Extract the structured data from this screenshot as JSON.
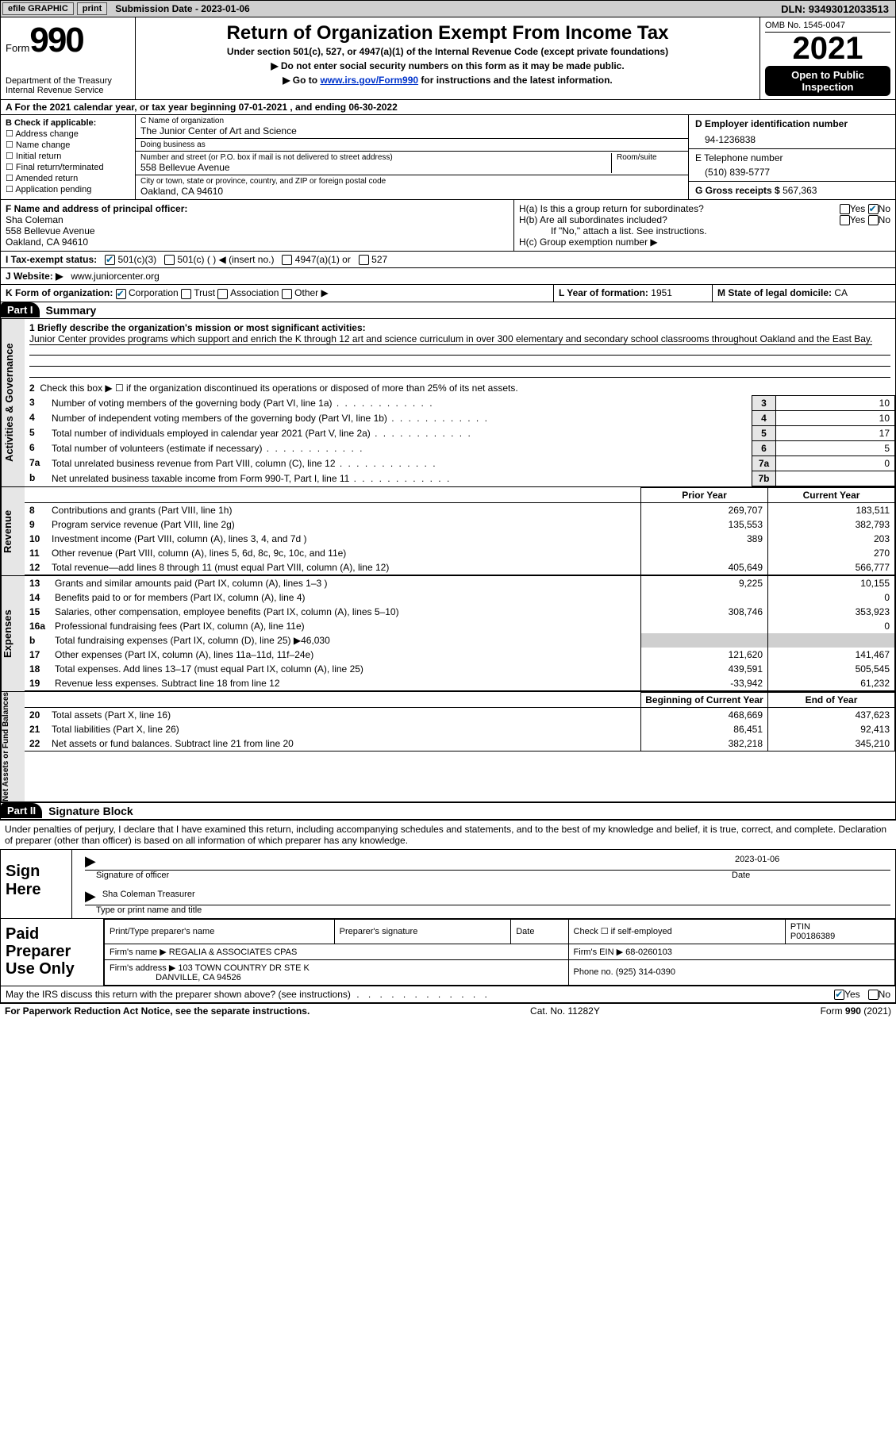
{
  "topbar": {
    "efile": "efile GRAPHIC",
    "print": "print",
    "subdate_label": "Submission Date -",
    "subdate": "2023-01-06",
    "dln_label": "DLN:",
    "dln": "93493012033513"
  },
  "header": {
    "form_word": "Form",
    "form_no": "990",
    "dept": "Department of the Treasury\nInternal Revenue Service",
    "title": "Return of Organization Exempt From Income Tax",
    "sub1": "Under section 501(c), 527, or 4947(a)(1) of the Internal Revenue Code (except private foundations)",
    "sub2": "▶ Do not enter social security numbers on this form as it may be made public.",
    "sub3_pre": "▶ Go to ",
    "sub3_link": "www.irs.gov/Form990",
    "sub3_post": " for instructions and the latest information.",
    "omb": "OMB No. 1545-0047",
    "year": "2021",
    "inspect": "Open to Public Inspection"
  },
  "period": {
    "line": "A For the 2021 calendar year, or tax year beginning 07-01-2021   , and ending 06-30-2022"
  },
  "entity": {
    "b_label": "B Check if applicable:",
    "b_opts": [
      "Address change",
      "Name change",
      "Initial return",
      "Final return/terminated",
      "Amended return",
      "Application pending"
    ],
    "c_name_lbl": "C Name of organization",
    "c_name": "The Junior Center of Art and Science",
    "dba_lbl": "Doing business as",
    "dba": "",
    "street_lbl": "Number and street (or P.O. box if mail is not delivered to street address)",
    "street": "558 Bellevue Avenue",
    "room_lbl": "Room/suite",
    "city_lbl": "City or town, state or province, country, and ZIP or foreign postal code",
    "city": "Oakland, CA  94610",
    "d_lbl": "D Employer identification number",
    "d_ein": "94-1236838",
    "e_lbl": "E Telephone number",
    "e_phone": "(510) 839-5777",
    "g_lbl": "G Gross receipts $",
    "g_val": "567,363"
  },
  "officer": {
    "f_lbl": "F  Name and address of principal officer:",
    "f_name": "Sha Coleman",
    "f_addr1": "558 Bellevue Avenue",
    "f_addr2": "Oakland, CA  94610",
    "ha_lbl": "H(a)  Is this a group return for subordinates?",
    "hb_lbl": "H(b)  Are all subordinates included?",
    "h_note": "If \"No,\" attach a list. See instructions.",
    "hc_lbl": "H(c)  Group exemption number ▶",
    "yes": "Yes",
    "no": "No"
  },
  "status": {
    "i_lbl": "I  Tax-exempt status:",
    "s501c3": "501(c)(3)",
    "s501c": "501(c) (  ) ◀ (insert no.)",
    "s4947": "4947(a)(1) or",
    "s527": "527"
  },
  "website": {
    "j_lbl": "J Website: ▶",
    "url": "www.juniorcenter.org"
  },
  "formorg": {
    "k_lbl": "K Form of organization:",
    "opts": [
      "Corporation",
      "Trust",
      "Association",
      "Other ▶"
    ],
    "l_lbl": "L Year of formation:",
    "l_val": "1951",
    "m_lbl": "M State of legal domicile:",
    "m_val": "CA"
  },
  "part1": {
    "label": "Part I",
    "title": "Summary"
  },
  "summary": {
    "vlabel": "Activities & Governance",
    "l1_lbl": "1  Briefly describe the organization's mission or most significant activities:",
    "l1_text": "Junior Center provides programs which support and enrich the K through 12 art and science curriculum in over 300 elementary and secondary school classrooms throughout Oakland and the East Bay.",
    "l2": "Check this box ▶ ☐  if the organization discontinued its operations or disposed of more than 25% of its net assets.",
    "rows": [
      {
        "n": "3",
        "desc": "Number of voting members of the governing body (Part VI, line 1a)",
        "box": "3",
        "val": "10"
      },
      {
        "n": "4",
        "desc": "Number of independent voting members of the governing body (Part VI, line 1b)",
        "box": "4",
        "val": "10"
      },
      {
        "n": "5",
        "desc": "Total number of individuals employed in calendar year 2021 (Part V, line 2a)",
        "box": "5",
        "val": "17"
      },
      {
        "n": "6",
        "desc": "Total number of volunteers (estimate if necessary)",
        "box": "6",
        "val": "5"
      },
      {
        "n": "7a",
        "desc": "Total unrelated business revenue from Part VIII, column (C), line 12",
        "box": "7a",
        "val": "0"
      },
      {
        "n": "b",
        "desc": "Net unrelated business taxable income from Form 990-T, Part I, line 11",
        "box": "7b",
        "val": ""
      }
    ]
  },
  "revenue": {
    "vlabel": "Revenue",
    "py_hdr": "Prior Year",
    "cy_hdr": "Current Year",
    "rows": [
      {
        "n": "8",
        "desc": "Contributions and grants (Part VIII, line 1h)",
        "py": "269,707",
        "cy": "183,511"
      },
      {
        "n": "9",
        "desc": "Program service revenue (Part VIII, line 2g)",
        "py": "135,553",
        "cy": "382,793"
      },
      {
        "n": "10",
        "desc": "Investment income (Part VIII, column (A), lines 3, 4, and 7d )",
        "py": "389",
        "cy": "203"
      },
      {
        "n": "11",
        "desc": "Other revenue (Part VIII, column (A), lines 5, 6d, 8c, 9c, 10c, and 11e)",
        "py": "",
        "cy": "270"
      },
      {
        "n": "12",
        "desc": "Total revenue—add lines 8 through 11 (must equal Part VIII, column (A), line 12)",
        "py": "405,649",
        "cy": "566,777"
      }
    ]
  },
  "expenses": {
    "vlabel": "Expenses",
    "rows": [
      {
        "n": "13",
        "desc": "Grants and similar amounts paid (Part IX, column (A), lines 1–3 )",
        "py": "9,225",
        "cy": "10,155"
      },
      {
        "n": "14",
        "desc": "Benefits paid to or for members (Part IX, column (A), line 4)",
        "py": "",
        "cy": "0"
      },
      {
        "n": "15",
        "desc": "Salaries, other compensation, employee benefits (Part IX, column (A), lines 5–10)",
        "py": "308,746",
        "cy": "353,923"
      },
      {
        "n": "16a",
        "desc": "Professional fundraising fees (Part IX, column (A), line 11e)",
        "py": "",
        "cy": "0"
      },
      {
        "n": "b",
        "desc": "Total fundraising expenses (Part IX, column (D), line 25) ▶46,030",
        "py": "GREY",
        "cy": "GREY"
      },
      {
        "n": "17",
        "desc": "Other expenses (Part IX, column (A), lines 11a–11d, 11f–24e)",
        "py": "121,620",
        "cy": "141,467"
      },
      {
        "n": "18",
        "desc": "Total expenses. Add lines 13–17 (must equal Part IX, column (A), line 25)",
        "py": "439,591",
        "cy": "505,545"
      },
      {
        "n": "19",
        "desc": "Revenue less expenses. Subtract line 18 from line 12",
        "py": "-33,942",
        "cy": "61,232"
      }
    ]
  },
  "net": {
    "vlabel": "Net Assets or Fund Balances",
    "by_hdr": "Beginning of Current Year",
    "ey_hdr": "End of Year",
    "rows": [
      {
        "n": "20",
        "desc": "Total assets (Part X, line 16)",
        "py": "468,669",
        "cy": "437,623"
      },
      {
        "n": "21",
        "desc": "Total liabilities (Part X, line 26)",
        "py": "86,451",
        "cy": "92,413"
      },
      {
        "n": "22",
        "desc": "Net assets or fund balances. Subtract line 21 from line 20",
        "py": "382,218",
        "cy": "345,210"
      }
    ]
  },
  "part2": {
    "label": "Part II",
    "title": "Signature Block"
  },
  "sig": {
    "perjury": "Under penalties of perjury, I declare that I have examined this return, including accompanying schedules and statements, and to the best of my knowledge and belief, it is true, correct, and complete. Declaration of preparer (other than officer) is based on all information of which preparer has any knowledge.",
    "sign_here": "Sign Here",
    "sig_officer": "Signature of officer",
    "date_lbl": "Date",
    "date": "2023-01-06",
    "name_title": "Sha Coleman  Treasurer",
    "type_name": "Type or print name and title"
  },
  "prep": {
    "lbl": "Paid Preparer Use Only",
    "r1": {
      "a": "Print/Type preparer's name",
      "b": "Preparer's signature",
      "c": "Date",
      "d": "Check ☐ if self-employed",
      "e_lbl": "PTIN",
      "e": "P00186389"
    },
    "r2": {
      "a": "Firm's name    ▶",
      "b": "REGALIA & ASSOCIATES CPAS",
      "c": "Firm's EIN ▶",
      "d": "68-0260103"
    },
    "r3": {
      "a": "Firm's address ▶",
      "b": "103 TOWN COUNTRY DR STE K",
      "c": "Phone no.",
      "d": "(925) 314-0390"
    },
    "r3b": "DANVILLE, CA  94526"
  },
  "discuss": {
    "q": "May the IRS discuss this return with the preparer shown above? (see instructions)",
    "yes": "Yes",
    "no": "No"
  },
  "footer": {
    "left": "For Paperwork Reduction Act Notice, see the separate instructions.",
    "mid": "Cat. No. 11282Y",
    "right": "Form 990 (2021)"
  }
}
